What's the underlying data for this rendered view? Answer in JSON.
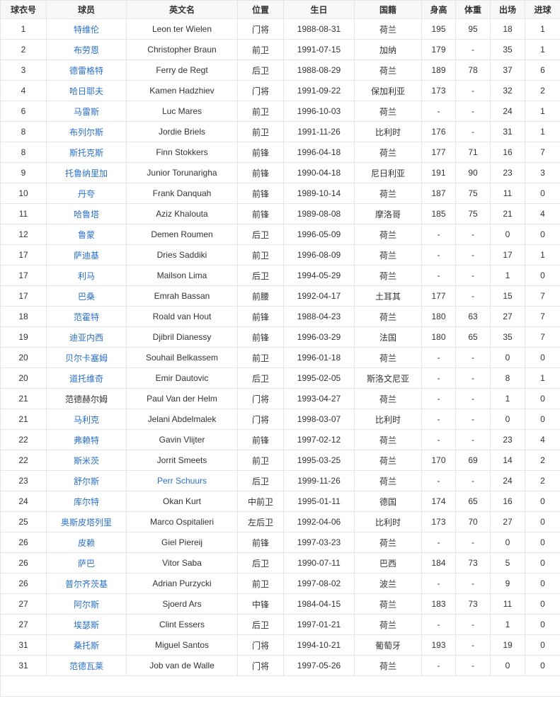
{
  "colors": {
    "link": "#2a6fc9",
    "header_bg": "#f7f7f7",
    "border": "#e6e6e6",
    "text": "#333333"
  },
  "table": {
    "headers": [
      "球衣号",
      "球员",
      "英文名",
      "位置",
      "生日",
      "国籍",
      "身高",
      "体重",
      "出场",
      "进球"
    ],
    "rows": [
      {
        "cells": [
          "1",
          "特维伦",
          "Leon ter Wielen",
          "门将",
          "1988-08-31",
          "荷兰",
          "195",
          "95",
          "18",
          "1"
        ],
        "name_link": true,
        "en_link": false
      },
      {
        "cells": [
          "2",
          "布劳恩",
          "Christopher Braun",
          "前卫",
          "1991-07-15",
          "加纳",
          "179",
          "-",
          "35",
          "1"
        ],
        "name_link": true,
        "en_link": false
      },
      {
        "cells": [
          "3",
          "德雷格特",
          "Ferry de Regt",
          "后卫",
          "1988-08-29",
          "荷兰",
          "189",
          "78",
          "37",
          "6"
        ],
        "name_link": true,
        "en_link": false
      },
      {
        "cells": [
          "4",
          "哈日耶夫",
          "Kamen Hadzhiev",
          "门将",
          "1991-09-22",
          "保加利亚",
          "173",
          "-",
          "32",
          "2"
        ],
        "name_link": true,
        "en_link": false
      },
      {
        "cells": [
          "6",
          "马雷斯",
          "Luc Mares",
          "前卫",
          "1996-10-03",
          "荷兰",
          "-",
          "-",
          "24",
          "1"
        ],
        "name_link": true,
        "en_link": false
      },
      {
        "cells": [
          "8",
          "布列尔斯",
          "Jordie Briels",
          "前卫",
          "1991-11-26",
          "比利时",
          "176",
          "-",
          "31",
          "1"
        ],
        "name_link": true,
        "en_link": false
      },
      {
        "cells": [
          "8",
          "斯托克斯",
          "Finn Stokkers",
          "前锋",
          "1996-04-18",
          "荷兰",
          "177",
          "71",
          "16",
          "7"
        ],
        "name_link": true,
        "en_link": false
      },
      {
        "cells": [
          "9",
          "托鲁纳里加",
          "Junior Torunarigha",
          "前锋",
          "1990-04-18",
          "尼日利亚",
          "191",
          "90",
          "23",
          "3"
        ],
        "name_link": true,
        "en_link": false
      },
      {
        "cells": [
          "10",
          "丹夸",
          "Frank Danquah",
          "前锋",
          "1989-10-14",
          "荷兰",
          "187",
          "75",
          "11",
          "0"
        ],
        "name_link": true,
        "en_link": false
      },
      {
        "cells": [
          "11",
          "哈鲁塔",
          "Aziz Khalouta",
          "前锋",
          "1989-08-08",
          "摩洛哥",
          "185",
          "75",
          "21",
          "4"
        ],
        "name_link": true,
        "en_link": false
      },
      {
        "cells": [
          "12",
          "鲁蒙",
          "Demen Roumen",
          "后卫",
          "1996-05-09",
          "荷兰",
          "-",
          "-",
          "0",
          "0"
        ],
        "name_link": true,
        "en_link": false
      },
      {
        "cells": [
          "17",
          "萨迪基",
          "Dries Saddiki",
          "前卫",
          "1996-08-09",
          "荷兰",
          "-",
          "-",
          "17",
          "1"
        ],
        "name_link": true,
        "en_link": false
      },
      {
        "cells": [
          "17",
          "利马",
          "Mailson Lima",
          "后卫",
          "1994-05-29",
          "荷兰",
          "-",
          "-",
          "1",
          "0"
        ],
        "name_link": true,
        "en_link": false
      },
      {
        "cells": [
          "17",
          "巴桑",
          "Emrah Bassan",
          "前腰",
          "1992-04-17",
          "土耳其",
          "177",
          "-",
          "15",
          "7"
        ],
        "name_link": true,
        "en_link": false
      },
      {
        "cells": [
          "18",
          "范霍特",
          "Roald van Hout",
          "前锋",
          "1988-04-23",
          "荷兰",
          "180",
          "63",
          "27",
          "7"
        ],
        "name_link": true,
        "en_link": false
      },
      {
        "cells": [
          "19",
          "迪亚内西",
          "Djibril Dianessy",
          "前锋",
          "1996-03-29",
          "法国",
          "180",
          "65",
          "35",
          "7"
        ],
        "name_link": true,
        "en_link": false
      },
      {
        "cells": [
          "20",
          "贝尔卡塞姆",
          "Souhail Belkassem",
          "前卫",
          "1996-01-18",
          "荷兰",
          "-",
          "-",
          "0",
          "0"
        ],
        "name_link": true,
        "en_link": false
      },
      {
        "cells": [
          "20",
          "道托维奇",
          "Emir Dautovic",
          "后卫",
          "1995-02-05",
          "斯洛文尼亚",
          "-",
          "-",
          "8",
          "1"
        ],
        "name_link": true,
        "en_link": false
      },
      {
        "cells": [
          "21",
          "范德赫尔姆",
          "Paul Van der Helm",
          "门将",
          "1993-04-27",
          "荷兰",
          "-",
          "-",
          "1",
          "0"
        ],
        "name_link": false,
        "en_link": false
      },
      {
        "cells": [
          "21",
          "马利克",
          "Jelani Abdelmalek",
          "门将",
          "1998-03-07",
          "比利时",
          "-",
          "-",
          "0",
          "0"
        ],
        "name_link": true,
        "en_link": false
      },
      {
        "cells": [
          "22",
          "弗赖特",
          "Gavin Vlijter",
          "前锋",
          "1997-02-12",
          "荷兰",
          "-",
          "-",
          "23",
          "4"
        ],
        "name_link": true,
        "en_link": false
      },
      {
        "cells": [
          "22",
          "斯米茨",
          "Jorrit Smeets",
          "前卫",
          "1995-03-25",
          "荷兰",
          "170",
          "69",
          "14",
          "2"
        ],
        "name_link": true,
        "en_link": false
      },
      {
        "cells": [
          "23",
          "舒尔斯",
          "Perr Schuurs",
          "后卫",
          "1999-11-26",
          "荷兰",
          "-",
          "-",
          "24",
          "2"
        ],
        "name_link": true,
        "en_link": true
      },
      {
        "cells": [
          "24",
          "库尔特",
          "Okan Kurt",
          "中前卫",
          "1995-01-11",
          "德国",
          "174",
          "65",
          "16",
          "0"
        ],
        "name_link": true,
        "en_link": false
      },
      {
        "cells": [
          "25",
          "奥斯皮塔列里",
          "Marco Ospitalieri",
          "左后卫",
          "1992-04-06",
          "比利时",
          "173",
          "70",
          "27",
          "0"
        ],
        "name_link": true,
        "en_link": false
      },
      {
        "cells": [
          "26",
          "皮赖",
          "Giel Piereij",
          "前锋",
          "1997-03-23",
          "荷兰",
          "-",
          "-",
          "0",
          "0"
        ],
        "name_link": true,
        "en_link": false
      },
      {
        "cells": [
          "26",
          "萨巴",
          "Vitor Saba",
          "后卫",
          "1990-07-11",
          "巴西",
          "184",
          "73",
          "5",
          "0"
        ],
        "name_link": true,
        "en_link": false
      },
      {
        "cells": [
          "26",
          "普尔齐茨基",
          "Adrian Purzycki",
          "前卫",
          "1997-08-02",
          "波兰",
          "-",
          "-",
          "9",
          "0"
        ],
        "name_link": true,
        "en_link": false
      },
      {
        "cells": [
          "27",
          "阿尔斯",
          "Sjoerd Ars",
          "中锋",
          "1984-04-15",
          "荷兰",
          "183",
          "73",
          "11",
          "0"
        ],
        "name_link": true,
        "en_link": false
      },
      {
        "cells": [
          "27",
          "埃瑟斯",
          "Clint Essers",
          "后卫",
          "1997-01-21",
          "荷兰",
          "-",
          "-",
          "1",
          "0"
        ],
        "name_link": true,
        "en_link": false
      },
      {
        "cells": [
          "31",
          "桑托斯",
          "Miguel Santos",
          "门将",
          "1994-10-21",
          "葡萄牙",
          "193",
          "-",
          "19",
          "0"
        ],
        "name_link": true,
        "en_link": false
      },
      {
        "cells": [
          "31",
          "范德瓦莱",
          "Job van de Walle",
          "门将",
          "1997-05-26",
          "荷兰",
          "-",
          "-",
          "0",
          "0"
        ],
        "name_link": true,
        "en_link": false
      }
    ]
  }
}
